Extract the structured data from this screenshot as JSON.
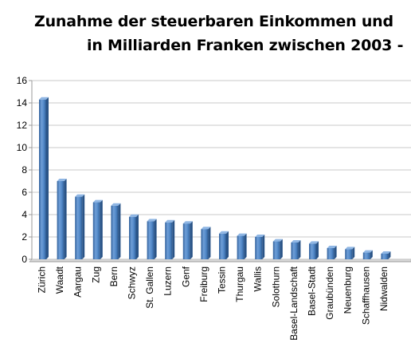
{
  "chart_data": {
    "type": "bar",
    "title_line1": "Zunahme der steuerbaren Einkommen und",
    "title_line2": "in Milliarden Franken zwischen 2003 -",
    "xlabel": "",
    "ylabel": "",
    "ylim": [
      0,
      16
    ],
    "yticks": [
      0,
      2,
      4,
      6,
      8,
      10,
      12,
      14,
      16
    ],
    "grid": true,
    "legend": "none",
    "bar_color": "#4f86c6",
    "categories": [
      "Zürich",
      "Waadt",
      "Aargau",
      "Zug",
      "Bern",
      "Schwyz",
      "St. Gallen",
      "Luzern",
      "Genf",
      "Freiburg",
      "Tessin",
      "Thurgau",
      "Wallis",
      "Solothurn",
      "Basel-Landschaft",
      "Basel-Stadt",
      "Graubünden",
      "Neuenburg",
      "Schaffhausen",
      "Nidwalden"
    ],
    "values": [
      14.3,
      7.0,
      5.6,
      5.1,
      4.8,
      3.8,
      3.4,
      3.3,
      3.2,
      2.7,
      2.3,
      2.1,
      2.0,
      1.6,
      1.5,
      1.4,
      1.0,
      0.9,
      0.6,
      0.5
    ]
  }
}
